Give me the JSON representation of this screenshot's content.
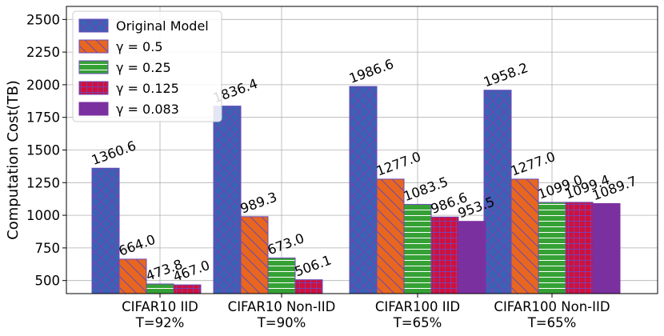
{
  "chart_data": {
    "type": "bar",
    "ylabel": "Computation Cost(TB)",
    "xlabel": "",
    "ylim": [
      400,
      2600
    ],
    "yticks": [
      500,
      750,
      1000,
      1250,
      1500,
      1750,
      2000,
      2250,
      2500
    ],
    "grid": true,
    "legend_position": "top-left",
    "categories": [
      [
        "CIFAR10 IID",
        "T=92%"
      ],
      [
        "CIFAR10 Non-IID",
        "T=90%"
      ],
      [
        "CIFAR100 IID",
        "T=65%"
      ],
      [
        "CIFAR100 Non-IID",
        "T=65%"
      ]
    ],
    "series": [
      {
        "name": "Original Model",
        "color": "#3a62b5",
        "hatch": "cross",
        "hatch_color": "#7b3fb0",
        "values": [
          1360.6,
          1836.4,
          1986.6,
          1958.2
        ],
        "labels": [
          "1360.6",
          "1836.4",
          "1986.6",
          "1958.2"
        ]
      },
      {
        "name": "γ = 0.5",
        "color": "#e8661e",
        "hatch": "back-diagonal",
        "hatch_color": "#6a4ab8",
        "values": [
          664.0,
          989.3,
          1277.0,
          1277.0
        ],
        "labels": [
          "664.0",
          "989.3",
          "1277.0",
          "1277.0"
        ]
      },
      {
        "name": "γ = 0.25",
        "color": "#35a135",
        "hatch": "horizontal",
        "hatch_color": "#ffffff",
        "values": [
          473.8,
          673.0,
          1083.5,
          1099.0
        ],
        "labels": [
          "473.8",
          "673.0",
          "1083.5",
          "1099.0"
        ]
      },
      {
        "name": "γ = 0.125",
        "color": "#d1103a",
        "hatch": "grid",
        "hatch_color": "#7b3fb0",
        "values": [
          467.0,
          506.1,
          986.6,
          1099.4
        ],
        "labels": [
          "467.0",
          "506.1",
          "986.6",
          "1099.4"
        ]
      },
      {
        "name": "γ = 0.083",
        "color": "#7b30a0",
        "hatch": "none",
        "hatch_color": "",
        "values": [
          null,
          null,
          953.5,
          1089.7
        ],
        "labels": [
          null,
          null,
          "953.5",
          "1089.7"
        ]
      }
    ]
  }
}
